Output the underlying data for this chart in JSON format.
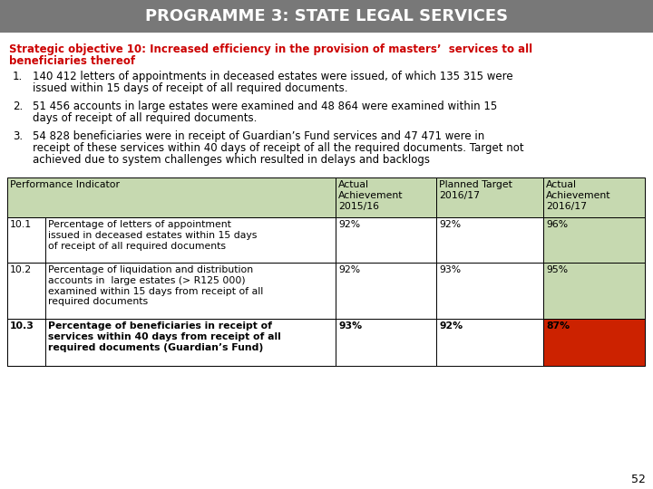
{
  "title": "PROGRAMME 3: STATE LEGAL SERVICES",
  "title_bg": "#787878",
  "title_color": "#ffffff",
  "strategic_lines": [
    "Strategic objective 10: Increased efficiency in the provision of masters’  services to all",
    "beneficiaries thereof"
  ],
  "strategic_color": "#cc0000",
  "bullets": [
    {
      "num": "1.",
      "lines": [
        "140 412 letters of appointments in deceased estates were issued, of which 135 315 were",
        "issued within 15 days of receipt of all required documents."
      ]
    },
    {
      "num": "2.",
      "lines": [
        "51 456 accounts in large estates were examined and 48 864 were examined within 15",
        "days of receipt of all required documents."
      ]
    },
    {
      "num": "3.",
      "lines": [
        "54 828 beneficiaries were in receipt of Guardian’s Fund services and 47 471 were in",
        "receipt of these services within 40 days of receipt of all the required documents. Target not",
        "achieved due to system challenges which resulted in delays and backlogs"
      ]
    }
  ],
  "table_header_bg": "#c6d9b0",
  "table_row_bg": "#ffffff",
  "green_cell_bg": "#c6d9b0",
  "red_cell_bg": "#cc2200",
  "col_headers": [
    [
      "Performance Indicator"
    ],
    [
      "Actual",
      "Achievement",
      "2015/16"
    ],
    [
      "Planned Target",
      "2016/17"
    ],
    [
      "Actual",
      "Achievement",
      "2016/17"
    ]
  ],
  "rows": [
    {
      "num": "10.1",
      "desc_lines": [
        "Percentage of letters of appointment",
        "issued in deceased estates within 15 days",
        "of receipt of all required documents"
      ],
      "actual_prev": "92%",
      "planned": "92%",
      "actual_curr": "96%",
      "actual_curr_bg": "#c6d9b0",
      "bold_row": false
    },
    {
      "num": "10.2",
      "desc_lines": [
        "Percentage of liquidation and distribution",
        "accounts in  large estates (> R125 000)",
        "examined within 15 days from receipt of all",
        "required documents"
      ],
      "actual_prev": "92%",
      "planned": "93%",
      "actual_curr": "95%",
      "actual_curr_bg": "#c6d9b0",
      "bold_row": false
    },
    {
      "num": "10.3",
      "desc_lines": [
        "Percentage of beneficiaries in receipt of",
        "services within 40 days from receipt of all",
        "required documents (Guardian’s Fund)"
      ],
      "actual_prev": "93%",
      "planned": "92%",
      "actual_curr": "87%",
      "actual_curr_bg": "#cc2200",
      "bold_row": true
    }
  ],
  "page_num": "52",
  "bg_color": "#ffffff",
  "text_color": "#000000",
  "title_fontsize": 13,
  "body_fontsize": 8.5,
  "table_fontsize": 7.8
}
